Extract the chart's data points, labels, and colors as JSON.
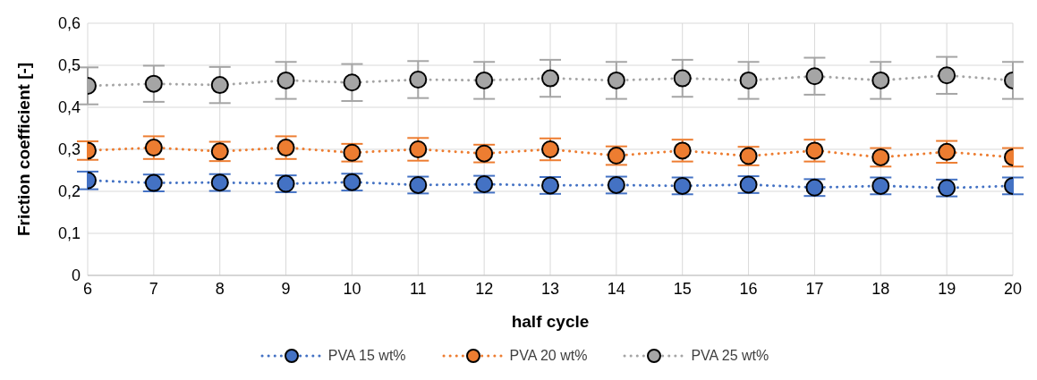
{
  "chart_data": {
    "type": "line",
    "xlabel": "half cycle",
    "ylabel": "Friction coefficient [-]",
    "x": [
      6,
      7,
      8,
      9,
      10,
      11,
      12,
      13,
      14,
      15,
      16,
      17,
      18,
      19,
      20
    ],
    "xlim": [
      6,
      20
    ],
    "xticks": [
      6,
      7,
      8,
      9,
      10,
      11,
      12,
      13,
      14,
      15,
      16,
      17,
      18,
      19,
      20
    ],
    "ylim": [
      0,
      0.6
    ],
    "yticks": [
      0,
      {
        "value": 0.1,
        "label": "0,1"
      },
      {
        "value": 0.2,
        "label": "0,2"
      },
      {
        "value": 0.3,
        "label": "0,3"
      },
      {
        "value": 0.4,
        "label": "0,4"
      },
      {
        "value": 0.5,
        "label": "0,5"
      },
      {
        "value": 0.6,
        "label": "0,6"
      }
    ],
    "grid": true,
    "legend": "bottom",
    "marker": "circle",
    "line_style": "dotted",
    "series": [
      {
        "name": "PVA 15 wt%",
        "color": "#4472c4",
        "values": [
          0.226,
          0.22,
          0.221,
          0.218,
          0.222,
          0.215,
          0.217,
          0.214,
          0.215,
          0.213,
          0.216,
          0.209,
          0.213,
          0.208,
          0.213
        ],
        "errors": [
          0.021,
          0.02,
          0.02,
          0.02,
          0.02,
          0.02,
          0.02,
          0.02,
          0.02,
          0.02,
          0.02,
          0.02,
          0.02,
          0.02,
          0.02
        ]
      },
      {
        "name": "PVA 20 wt%",
        "color": "#ed7d31",
        "values": [
          0.297,
          0.304,
          0.295,
          0.304,
          0.292,
          0.3,
          0.29,
          0.3,
          0.285,
          0.297,
          0.284,
          0.297,
          0.281,
          0.294,
          0.281
        ],
        "errors": [
          0.022,
          0.027,
          0.023,
          0.027,
          0.021,
          0.027,
          0.021,
          0.026,
          0.022,
          0.026,
          0.022,
          0.026,
          0.022,
          0.026,
          0.022
        ]
      },
      {
        "name": "PVA 25 wt%",
        "color": "#a5a5a5",
        "values": [
          0.451,
          0.456,
          0.453,
          0.464,
          0.459,
          0.466,
          0.464,
          0.469,
          0.464,
          0.469,
          0.464,
          0.474,
          0.464,
          0.476,
          0.464
        ],
        "errors": [
          0.044,
          0.043,
          0.043,
          0.044,
          0.044,
          0.044,
          0.044,
          0.044,
          0.044,
          0.044,
          0.044,
          0.044,
          0.044,
          0.044,
          0.044
        ]
      }
    ]
  }
}
